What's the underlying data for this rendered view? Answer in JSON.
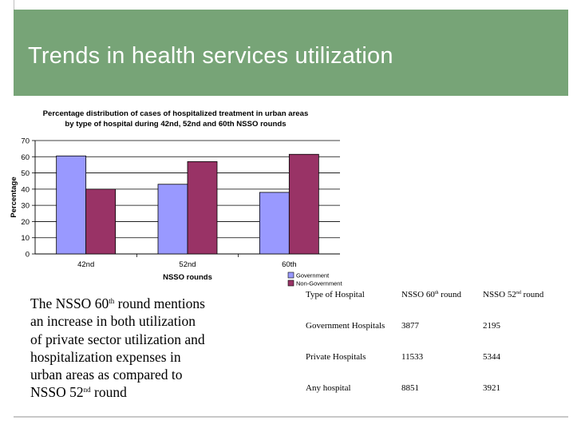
{
  "slide": {
    "title": "Trends in health services utilization"
  },
  "body_text": {
    "line1_pre": "The NSSO 60",
    "line1_sup": "th",
    "line1_post": " round mentions",
    "line2": "an increase in both utilization",
    "line3": "of private sector utilization and",
    "line4": "hospitalization expenses in",
    "line5": "urban areas as compared to",
    "line6_pre": "NSSO 52",
    "line6_sup": "nd",
    "line6_post": " round"
  },
  "table": {
    "headers": [
      {
        "pre": "Type of Hospital",
        "sup": "",
        "post": ""
      },
      {
        "pre": "NSSO 60",
        "sup": "th",
        "post": " round"
      },
      {
        "pre": "NSSO 52",
        "sup": "nd",
        "post": " round"
      }
    ],
    "rows": [
      [
        "Government Hospitals",
        "3877",
        "2195"
      ],
      [
        "Private Hospitals",
        "11533",
        "5344"
      ],
      [
        "Any hospital",
        "8851",
        "3921"
      ]
    ]
  },
  "colors": {
    "title_bar": "#77a477",
    "government": "#9999ff",
    "non_government": "#993366"
  },
  "chart_data": {
    "type": "bar",
    "title_lines": [
      "Percentage distribution of cases of hospitalized treatment in urban areas",
      "by type of hospital during 42nd, 52nd and 60th NSSO rounds"
    ],
    "categories": [
      "42nd",
      "52nd",
      "60th"
    ],
    "series": [
      {
        "name": "Government",
        "values": [
          60.5,
          43,
          38
        ]
      },
      {
        "name": "Non-Government",
        "values": [
          40,
          57,
          61.5
        ]
      }
    ],
    "xlabel": "NSSO rounds",
    "ylabel": "Percentage",
    "ylim": [
      0,
      70
    ],
    "yticks": [
      "0",
      "10",
      "20",
      "30",
      "40",
      "50",
      "60",
      "70"
    ],
    "grid": true,
    "legend": "bottom-right"
  }
}
